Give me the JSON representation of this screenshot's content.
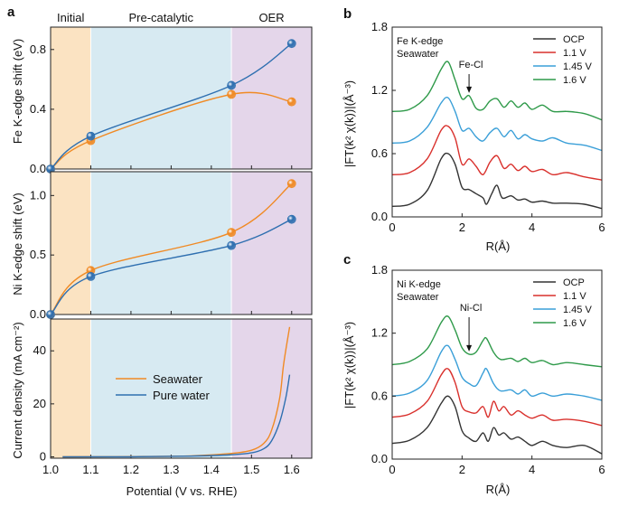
{
  "chart_data": [
    {
      "panel": "a",
      "type": "line",
      "title": "",
      "xlabel": "Potential (V vs. RHE)",
      "xlim": [
        1.0,
        1.65
      ],
      "xticks": [
        "1.0",
        "1.1",
        "1.2",
        "1.3",
        "1.4",
        "1.5",
        "1.6"
      ],
      "region_labels": [
        "Initial",
        "Pre-catalytic",
        "OER"
      ],
      "region_bounds": [
        [
          1.0,
          1.1
        ],
        [
          1.1,
          1.45
        ],
        [
          1.45,
          1.65
        ]
      ],
      "region_colors": [
        "#fbe3c2",
        "#d7eaf2",
        "#e4d6ea"
      ],
      "colors": {
        "seawater": "#f08a24",
        "pure": "#2e6fb0"
      },
      "subplots": [
        {
          "ylabel": "Fe K-edge shift (eV)",
          "ylim": [
            0,
            0.95
          ],
          "yticks": [
            "0.0",
            "0.4",
            "0.8"
          ],
          "series": [
            {
              "name": "Seawater",
              "points": [
                [
                  1.0,
                  0.0
                ],
                [
                  1.1,
                  0.19
                ],
                [
                  1.45,
                  0.5
                ],
                [
                  1.6,
                  0.45
                ]
              ]
            },
            {
              "name": "Pure water",
              "points": [
                [
                  1.0,
                  0.0
                ],
                [
                  1.1,
                  0.22
                ],
                [
                  1.45,
                  0.56
                ],
                [
                  1.6,
                  0.84
                ]
              ]
            }
          ]
        },
        {
          "ylabel": "Ni K-edge shift (eV)",
          "ylim": [
            0,
            1.2
          ],
          "yticks": [
            "0.0",
            "0.5",
            "1.0"
          ],
          "series": [
            {
              "name": "Seawater",
              "points": [
                [
                  1.0,
                  0.0
                ],
                [
                  1.1,
                  0.37
                ],
                [
                  1.45,
                  0.69
                ],
                [
                  1.6,
                  1.1
                ]
              ]
            },
            {
              "name": "Pure water",
              "points": [
                [
                  1.0,
                  0.0
                ],
                [
                  1.1,
                  0.32
                ],
                [
                  1.45,
                  0.58
                ],
                [
                  1.6,
                  0.8
                ]
              ]
            }
          ]
        },
        {
          "ylabel": "Current density (mA cm⁻²)",
          "ylim": [
            -0.5,
            52
          ],
          "yticks": [
            "0",
            "20",
            "40"
          ],
          "legend": [
            "Seawater",
            "Pure water"
          ],
          "series": [
            {
              "name": "Seawater",
              "points": [
                [
                  1.03,
                  0
                ],
                [
                  1.2,
                  0.1
                ],
                [
                  1.35,
                  0.4
                ],
                [
                  1.45,
                  1.3
                ],
                [
                  1.5,
                  2.5
                ],
                [
                  1.53,
                  5
                ],
                [
                  1.55,
                  10
                ],
                [
                  1.57,
                  22
                ],
                [
                  1.58,
                  35
                ],
                [
                  1.595,
                  49
                ]
              ]
            },
            {
              "name": "Pure water",
              "points": [
                [
                  1.03,
                  0
                ],
                [
                  1.2,
                  0.05
                ],
                [
                  1.35,
                  0.3
                ],
                [
                  1.45,
                  0.8
                ],
                [
                  1.5,
                  1.5
                ],
                [
                  1.53,
                  3
                ],
                [
                  1.55,
                  6
                ],
                [
                  1.57,
                  13
                ],
                [
                  1.585,
                  22
                ],
                [
                  1.595,
                  31
                ]
              ]
            }
          ]
        }
      ]
    },
    {
      "panel": "b",
      "type": "line",
      "xlabel": "R(Å)",
      "ylabel": "|FT(k² χ(k))|(Å⁻³)",
      "xlim": [
        0,
        6
      ],
      "ylim": [
        0,
        1.8
      ],
      "xticks": [
        "0",
        "2",
        "4",
        "6"
      ],
      "yticks": [
        "0.0",
        "0.6",
        "1.2",
        "1.8"
      ],
      "text_labels": [
        "Fe K-edge",
        "Seawater"
      ],
      "annotation": "Fe-Cl",
      "annotation_x": 2.2,
      "legend": [
        "OCP",
        "1.1 V",
        "1.45 V",
        "1.6 V"
      ],
      "series": [
        {
          "name": "OCP",
          "color": "#333333",
          "offset": 0.1,
          "points": [
            [
              0,
              0
            ],
            [
              0.5,
              0.02
            ],
            [
              1.0,
              0.15
            ],
            [
              1.4,
              0.45
            ],
            [
              1.6,
              0.5
            ],
            [
              1.8,
              0.4
            ],
            [
              2.0,
              0.18
            ],
            [
              2.2,
              0.16
            ],
            [
              2.4,
              0.12
            ],
            [
              2.6,
              0.08
            ],
            [
              2.7,
              0.02
            ],
            [
              2.85,
              0.12
            ],
            [
              3.0,
              0.2
            ],
            [
              3.15,
              0.08
            ],
            [
              3.4,
              0.1
            ],
            [
              3.6,
              0.06
            ],
            [
              3.8,
              0.07
            ],
            [
              4.0,
              0.04
            ],
            [
              4.3,
              0.05
            ],
            [
              4.6,
              0.03
            ],
            [
              5.0,
              0.03
            ],
            [
              5.5,
              0.02
            ],
            [
              6.0,
              -0.02
            ]
          ]
        },
        {
          "name": "1.1 V",
          "color": "#d9302c",
          "offset": 0.4,
          "points": [
            [
              0,
              0
            ],
            [
              0.5,
              0.02
            ],
            [
              1.0,
              0.15
            ],
            [
              1.4,
              0.42
            ],
            [
              1.6,
              0.46
            ],
            [
              1.8,
              0.35
            ],
            [
              2.0,
              0.1
            ],
            [
              2.2,
              0.15
            ],
            [
              2.4,
              0.08
            ],
            [
              2.6,
              0.0
            ],
            [
              2.8,
              0.12
            ],
            [
              3.0,
              0.18
            ],
            [
              3.2,
              0.06
            ],
            [
              3.4,
              0.1
            ],
            [
              3.6,
              0.04
            ],
            [
              3.8,
              0.08
            ],
            [
              4.0,
              0.03
            ],
            [
              4.3,
              0.05
            ],
            [
              4.6,
              0.0
            ],
            [
              5.0,
              0.02
            ],
            [
              5.5,
              -0.02
            ],
            [
              6.0,
              -0.05
            ]
          ]
        },
        {
          "name": "1.45 V",
          "color": "#3a9fd8",
          "offset": 0.7,
          "points": [
            [
              0,
              0
            ],
            [
              0.5,
              0.02
            ],
            [
              1.0,
              0.15
            ],
            [
              1.4,
              0.38
            ],
            [
              1.6,
              0.43
            ],
            [
              1.8,
              0.3
            ],
            [
              2.0,
              0.12
            ],
            [
              2.2,
              0.14
            ],
            [
              2.4,
              0.06
            ],
            [
              2.6,
              0.02
            ],
            [
              2.8,
              0.1
            ],
            [
              3.0,
              0.14
            ],
            [
              3.2,
              0.06
            ],
            [
              3.4,
              0.12
            ],
            [
              3.6,
              0.04
            ],
            [
              3.8,
              0.08
            ],
            [
              4.0,
              0.04
            ],
            [
              4.3,
              0.02
            ],
            [
              4.6,
              0.05
            ],
            [
              5.0,
              0.0
            ],
            [
              5.5,
              -0.02
            ],
            [
              6.0,
              -0.07
            ]
          ]
        },
        {
          "name": "1.6 V",
          "color": "#2f9a4a",
          "offset": 1.0,
          "points": [
            [
              0,
              0
            ],
            [
              0.5,
              0.02
            ],
            [
              1.0,
              0.15
            ],
            [
              1.4,
              0.4
            ],
            [
              1.6,
              0.47
            ],
            [
              1.8,
              0.3
            ],
            [
              2.0,
              0.12
            ],
            [
              2.2,
              0.15
            ],
            [
              2.4,
              0.03
            ],
            [
              2.6,
              0.02
            ],
            [
              2.8,
              0.1
            ],
            [
              3.0,
              0.12
            ],
            [
              3.2,
              0.04
            ],
            [
              3.4,
              0.1
            ],
            [
              3.6,
              0.04
            ],
            [
              3.8,
              0.08
            ],
            [
              4.0,
              0.02
            ],
            [
              4.3,
              0.06
            ],
            [
              4.6,
              0.0
            ],
            [
              5.0,
              0.0
            ],
            [
              5.5,
              -0.02
            ],
            [
              6.0,
              -0.08
            ]
          ]
        }
      ]
    },
    {
      "panel": "c",
      "type": "line",
      "xlabel": "R(Å)",
      "ylabel": "|FT(k² χ(k))|(Å⁻³)",
      "xlim": [
        0,
        6
      ],
      "ylim": [
        0,
        1.8
      ],
      "xticks": [
        "0",
        "2",
        "4",
        "6"
      ],
      "yticks": [
        "0.0",
        "0.6",
        "1.2",
        "1.8"
      ],
      "text_labels": [
        "Ni K-edge",
        "Seawater"
      ],
      "annotation": "Ni-Cl",
      "annotation_x": 2.2,
      "legend": [
        "OCP",
        "1.1 V",
        "1.45 V",
        "1.6 V"
      ],
      "series": [
        {
          "name": "OCP",
          "color": "#333333",
          "offset": 0.15,
          "points": [
            [
              0,
              0
            ],
            [
              0.5,
              0.03
            ],
            [
              1.0,
              0.15
            ],
            [
              1.4,
              0.38
            ],
            [
              1.6,
              0.45
            ],
            [
              1.8,
              0.35
            ],
            [
              2.0,
              0.12
            ],
            [
              2.2,
              0.05
            ],
            [
              2.4,
              0.02
            ],
            [
              2.6,
              0.1
            ],
            [
              2.75,
              0.02
            ],
            [
              2.9,
              0.15
            ],
            [
              3.05,
              0.08
            ],
            [
              3.2,
              0.1
            ],
            [
              3.4,
              0.04
            ],
            [
              3.6,
              0.06
            ],
            [
              3.8,
              0.02
            ],
            [
              4.0,
              -0.02
            ],
            [
              4.3,
              0.02
            ],
            [
              4.6,
              -0.02
            ],
            [
              5.0,
              -0.04
            ],
            [
              5.5,
              -0.02
            ],
            [
              6.0,
              -0.1
            ]
          ]
        },
        {
          "name": "1.1 V",
          "color": "#d9302c",
          "offset": 0.4,
          "points": [
            [
              0,
              0
            ],
            [
              0.5,
              0.03
            ],
            [
              1.0,
              0.15
            ],
            [
              1.4,
              0.4
            ],
            [
              1.6,
              0.46
            ],
            [
              1.8,
              0.33
            ],
            [
              2.0,
              0.1
            ],
            [
              2.2,
              0.05
            ],
            [
              2.4,
              0.04
            ],
            [
              2.6,
              0.1
            ],
            [
              2.75,
              0.0
            ],
            [
              2.9,
              0.15
            ],
            [
              3.05,
              0.06
            ],
            [
              3.2,
              0.1
            ],
            [
              3.4,
              0.02
            ],
            [
              3.6,
              0.06
            ],
            [
              3.8,
              0.02
            ],
            [
              4.0,
              -0.01
            ],
            [
              4.3,
              0.02
            ],
            [
              4.6,
              -0.03
            ],
            [
              5.0,
              -0.02
            ],
            [
              5.5,
              -0.04
            ],
            [
              6.0,
              -0.08
            ]
          ]
        },
        {
          "name": "1.45 V",
          "color": "#3a9fd8",
          "offset": 0.6,
          "points": [
            [
              0,
              0
            ],
            [
              0.5,
              0.03
            ],
            [
              1.0,
              0.15
            ],
            [
              1.4,
              0.42
            ],
            [
              1.6,
              0.48
            ],
            [
              1.8,
              0.35
            ],
            [
              2.0,
              0.18
            ],
            [
              2.2,
              0.12
            ],
            [
              2.4,
              0.1
            ],
            [
              2.6,
              0.22
            ],
            [
              2.7,
              0.26
            ],
            [
              2.9,
              0.12
            ],
            [
              3.1,
              0.05
            ],
            [
              3.4,
              0.06
            ],
            [
              3.6,
              0.02
            ],
            [
              3.8,
              0.06
            ],
            [
              4.0,
              0.0
            ],
            [
              4.3,
              0.03
            ],
            [
              4.6,
              0.0
            ],
            [
              5.0,
              0.02
            ],
            [
              5.5,
              0.0
            ],
            [
              6.0,
              -0.04
            ]
          ]
        },
        {
          "name": "1.6 V",
          "color": "#2f9a4a",
          "offset": 0.9,
          "points": [
            [
              0,
              0
            ],
            [
              0.5,
              0.03
            ],
            [
              1.0,
              0.15
            ],
            [
              1.4,
              0.4
            ],
            [
              1.6,
              0.46
            ],
            [
              1.8,
              0.33
            ],
            [
              2.0,
              0.16
            ],
            [
              2.2,
              0.1
            ],
            [
              2.4,
              0.12
            ],
            [
              2.6,
              0.23
            ],
            [
              2.7,
              0.25
            ],
            [
              2.9,
              0.12
            ],
            [
              3.1,
              0.05
            ],
            [
              3.4,
              0.06
            ],
            [
              3.6,
              0.03
            ],
            [
              3.8,
              0.06
            ],
            [
              4.0,
              0.02
            ],
            [
              4.3,
              0.04
            ],
            [
              4.6,
              0.0
            ],
            [
              5.0,
              0.02
            ],
            [
              5.5,
              0.0
            ],
            [
              6.0,
              -0.02
            ]
          ]
        }
      ]
    }
  ]
}
